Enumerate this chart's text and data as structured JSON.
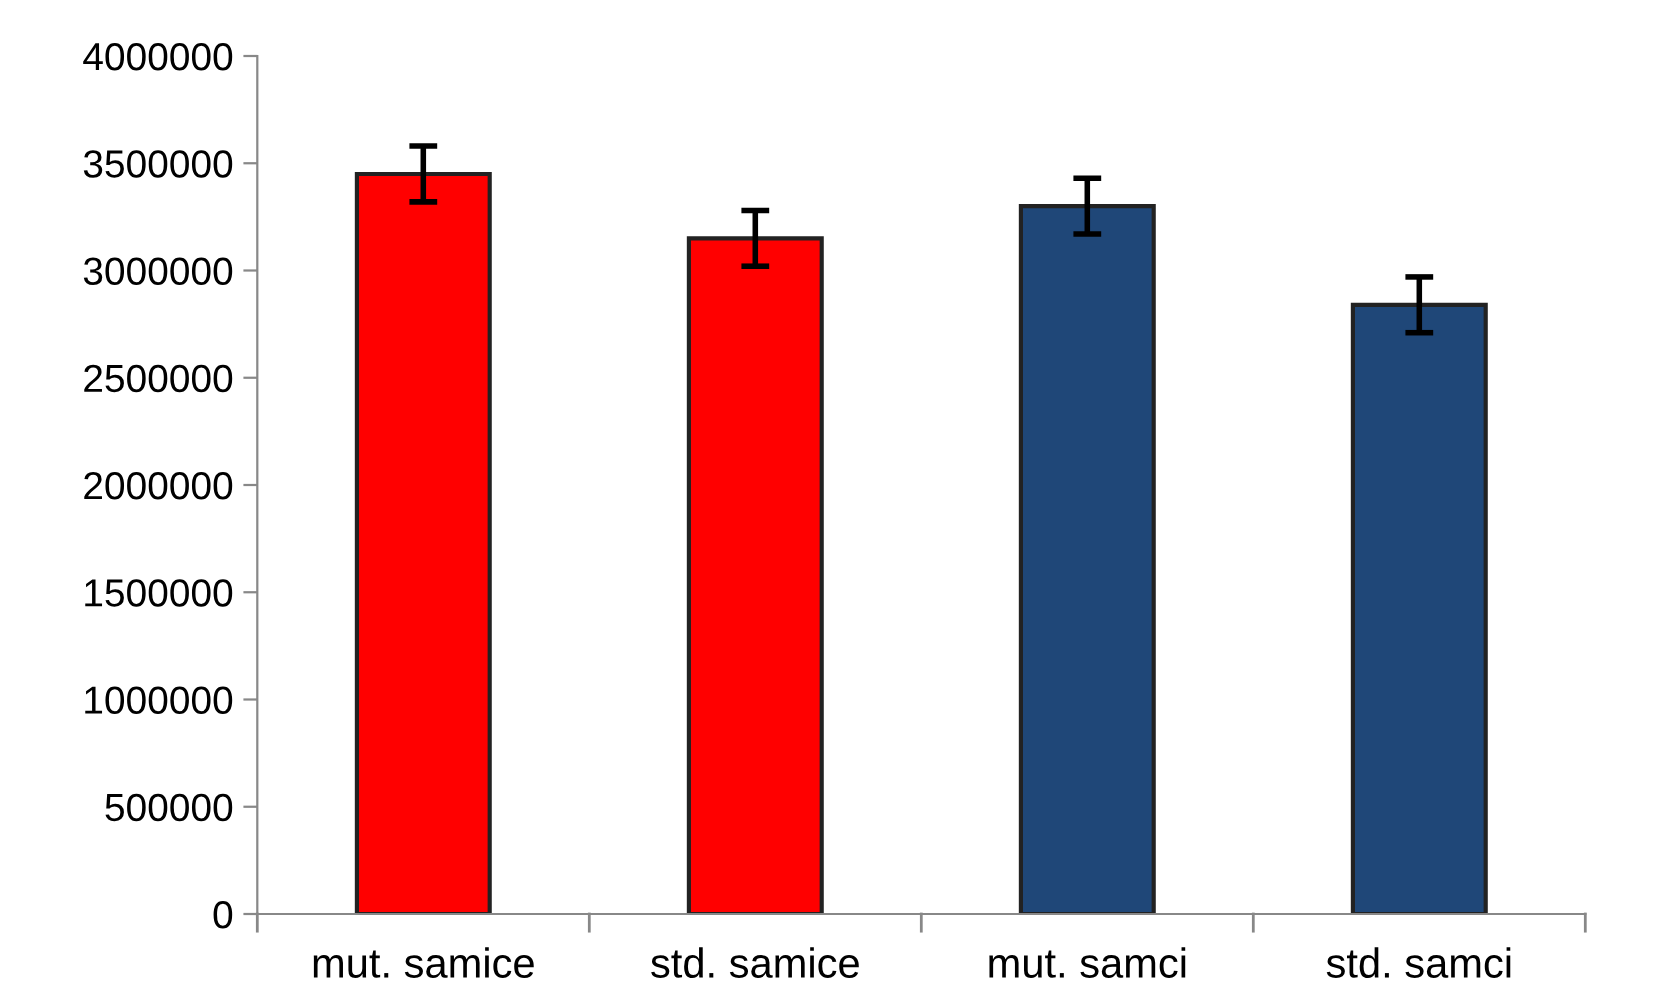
{
  "chart_data": {
    "type": "bar",
    "categories": [
      "mut. samice",
      "std. samice",
      "mut. samci",
      "std. samci"
    ],
    "values": [
      3450000,
      3150000,
      3300000,
      2840000
    ],
    "colors": [
      "#ff0000",
      "#ff0000",
      "#1f4778",
      "#1f4778"
    ],
    "errors": [
      130000,
      130000,
      130000,
      130000
    ],
    "ylim": [
      0,
      4000000
    ],
    "yticks": [
      0,
      500000,
      1000000,
      1500000,
      2000000,
      2500000,
      3000000,
      3500000,
      4000000
    ],
    "grid": false
  }
}
